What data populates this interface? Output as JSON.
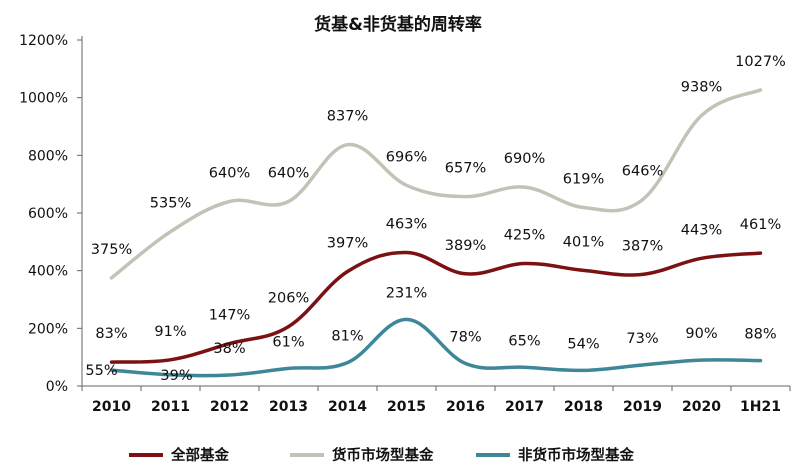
{
  "chart_data": {
    "type": "line",
    "title": "货基&非货基的周转率",
    "categories": [
      "2010",
      "2011",
      "2012",
      "2013",
      "2014",
      "2015",
      "2016",
      "2017",
      "2018",
      "2019",
      "2020",
      "1H21"
    ],
    "y_ticks": [
      "0%",
      "200%",
      "400%",
      "600%",
      "800%",
      "1000%",
      "1200%"
    ],
    "ylim": [
      0,
      1200
    ],
    "grid": false,
    "legend_position": "bottom",
    "series": [
      {
        "name": "全部基金",
        "color": "#7b1113",
        "values": [
          83,
          91,
          147,
          206,
          397,
          463,
          389,
          425,
          401,
          387,
          443,
          461
        ],
        "labels": [
          "83%",
          "91%",
          "147%",
          "206%",
          "397%",
          "463%",
          "389%",
          "425%",
          "401%",
          "387%",
          "443%",
          "461%"
        ]
      },
      {
        "name": "货币市场型基金",
        "color": "#c4c2b6",
        "values": [
          375,
          535,
          640,
          640,
          837,
          696,
          657,
          690,
          619,
          646,
          938,
          1027
        ],
        "labels": [
          "375%",
          "535%",
          "640%",
          "640%",
          "837%",
          "696%",
          "657%",
          "690%",
          "619%",
          "646%",
          "938%",
          "1027%"
        ]
      },
      {
        "name": "非货币市场型基金",
        "color": "#3e8799",
        "values": [
          55,
          39,
          38,
          61,
          81,
          231,
          78,
          65,
          54,
          73,
          90,
          88
        ],
        "labels": [
          "55%",
          "39%",
          "38%",
          "61%",
          "81%",
          "231%",
          "78%",
          "65%",
          "54%",
          "73%",
          "90%",
          "88%"
        ]
      }
    ]
  }
}
